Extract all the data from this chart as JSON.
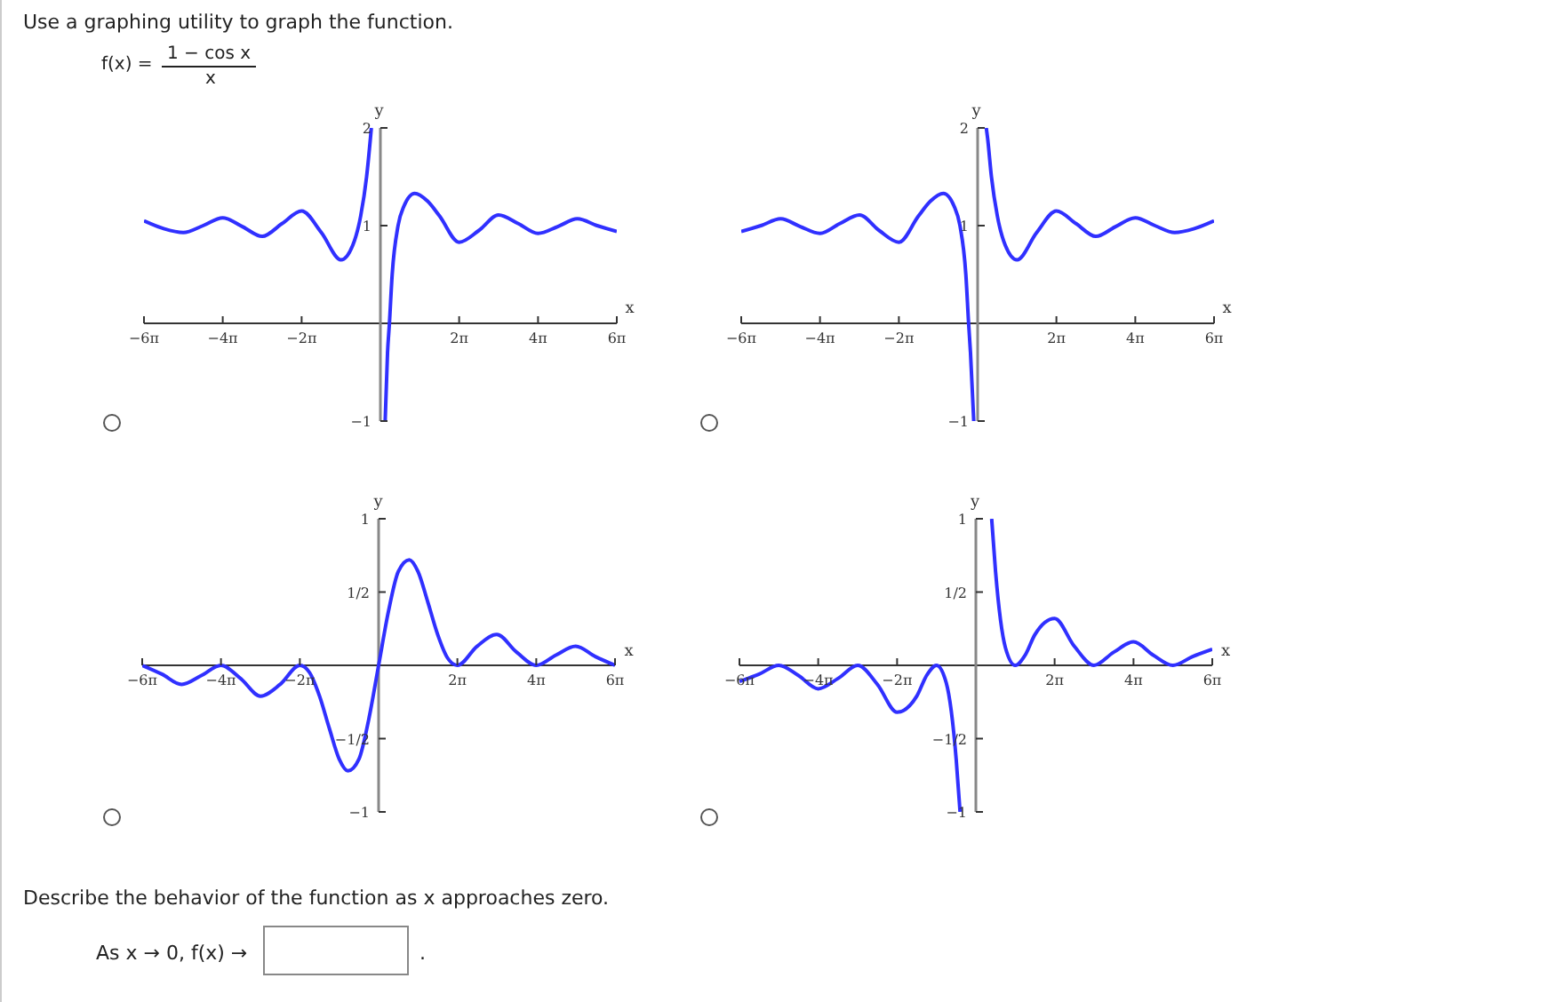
{
  "chart_data": [
    {
      "type": "line",
      "title": "Use a graphing utility to graph the function.",
      "annotations": [
        "f(x) =",
        "1 − cos x",
        "x"
      ],
      "xlabel": "x",
      "ylabel": "y",
      "xlim": [
        -18.85,
        18.85
      ],
      "ylim": [
        -1,
        2
      ],
      "xticks": [
        {
          "value": -18.85,
          "label": "−6π"
        },
        {
          "value": -12.57,
          "label": "−4π"
        },
        {
          "value": -6.28,
          "label": "−2π"
        },
        {
          "value": 6.28,
          "label": "2π"
        },
        {
          "value": 12.57,
          "label": "4π"
        },
        {
          "value": 18.85,
          "label": "6π"
        }
      ],
      "yticks": [
        {
          "value": -1,
          "label": "−1"
        },
        {
          "value": 1,
          "label": "1"
        },
        {
          "value": 2,
          "label": "2"
        }
      ],
      "series": [
        {
          "color": "#3030ff",
          "x": [
            -18.85,
            -17.28,
            -15.71,
            -14.14,
            -12.57,
            -11.0,
            -9.42,
            -7.85,
            -6.28,
            -4.71,
            -3.14,
            -2.2,
            -1.57,
            -1.1,
            -0.79,
            -0.72,
            0,
            0.38,
            0.57,
            0.72,
            0.94,
            1.41,
            1.88,
            2.73,
            3.77,
            4.71,
            6.28,
            7.85,
            9.42,
            11.0,
            12.57,
            14.14,
            15.71,
            17.28,
            18.85
          ],
          "values": [
            1.05,
            0.97,
            0.93,
            1.0,
            1.08,
            0.99,
            0.89,
            1.02,
            1.15,
            0.93,
            0.65,
            0.8,
            1.1,
            1.5,
            1.9,
            2.0,
            null,
            -1,
            -0.3,
            0,
            0.5,
            1.0,
            1.2,
            1.33,
            1.25,
            1.1,
            0.83,
            0.95,
            1.11,
            1.02,
            0.92,
            0.99,
            1.07,
            1.0,
            0.94
          ]
        }
      ]
    },
    {
      "type": "line",
      "xlabel": "x",
      "ylabel": "y",
      "xlim": [
        -18.85,
        18.85
      ],
      "ylim": [
        -1,
        2
      ],
      "xticks": [
        {
          "value": -18.85,
          "label": "−6π"
        },
        {
          "value": -12.57,
          "label": "−4π"
        },
        {
          "value": -6.28,
          "label": "−2π"
        },
        {
          "value": 6.28,
          "label": "2π"
        },
        {
          "value": 12.57,
          "label": "4π"
        },
        {
          "value": 18.85,
          "label": "6π"
        }
      ],
      "yticks": [
        {
          "value": -1,
          "label": "−1"
        },
        {
          "value": 1,
          "label": "1"
        },
        {
          "value": 2,
          "label": "2"
        }
      ],
      "series": [
        {
          "color": "#3030ff",
          "x": [
            -18.85,
            -17.28,
            -15.71,
            -14.14,
            -12.57,
            -11.0,
            -9.42,
            -7.85,
            -6.28,
            -4.71,
            -3.77,
            -2.73,
            -1.88,
            -1.41,
            -0.94,
            -0.72,
            -0.57,
            -0.31,
            0,
            0.69,
            0.79,
            1.1,
            1.57,
            2.2,
            3.14,
            4.71,
            6.28,
            7.85,
            9.42,
            11.0,
            12.57,
            14.14,
            15.71,
            17.28,
            18.85
          ],
          "values": [
            0.94,
            1.0,
            1.07,
            0.99,
            0.92,
            1.02,
            1.11,
            0.95,
            0.83,
            1.1,
            1.25,
            1.33,
            1.2,
            1.0,
            0.5,
            0,
            -0.3,
            -1,
            null,
            2.0,
            1.9,
            1.5,
            1.1,
            0.8,
            0.65,
            0.93,
            1.15,
            1.02,
            0.89,
            0.99,
            1.08,
            1.0,
            0.93,
            0.97,
            1.05
          ]
        }
      ]
    },
    {
      "type": "line",
      "annotations": [
        "Describe the behavior of the function as x approaches zero.",
        "As x → 0, f(x) →",
        "."
      ],
      "xlabel": "x",
      "ylabel": "y",
      "xlim": [
        -18.85,
        18.85
      ],
      "ylim": [
        -1,
        1
      ],
      "xticks": [
        {
          "value": -18.85,
          "label": "−6π"
        },
        {
          "value": -12.57,
          "label": "−4π"
        },
        {
          "value": -6.28,
          "label": "−2π"
        },
        {
          "value": 6.28,
          "label": "2π"
        },
        {
          "value": 12.57,
          "label": "4π"
        },
        {
          "value": 18.85,
          "label": "6π"
        }
      ],
      "yticks": [
        {
          "value": -1,
          "label": "−1"
        },
        {
          "value": -0.5,
          "label": "−1/2"
        },
        {
          "value": 0.5,
          "label": "1/2"
        },
        {
          "value": 1,
          "label": "1"
        }
      ],
      "series": [
        {
          "color": "#3030ff",
          "x": [
            -18.85,
            -17.28,
            -15.71,
            -14.14,
            -12.57,
            -11.0,
            -9.42,
            -7.85,
            -6.28,
            -5.5,
            -4.71,
            -3.93,
            -3.14,
            -2.45,
            -1.57,
            -0.79,
            0,
            0.79,
            1.57,
            2.45,
            3.14,
            3.93,
            4.71,
            5.5,
            6.28,
            7.85,
            9.42,
            11.0,
            12.57,
            14.14,
            15.71,
            17.28,
            18.85
          ],
          "values": [
            0,
            -0.06,
            -0.13,
            -0.07,
            0,
            -0.09,
            -0.21,
            -0.13,
            0,
            -0.05,
            -0.21,
            -0.43,
            -0.64,
            -0.72,
            -0.64,
            -0.37,
            0,
            0.37,
            0.64,
            0.72,
            0.64,
            0.43,
            0.21,
            0.05,
            0,
            0.13,
            0.21,
            0.09,
            0,
            0.07,
            0.13,
            0.06,
            0
          ]
        }
      ]
    },
    {
      "type": "line",
      "xlabel": "x",
      "ylabel": "y",
      "xlim": [
        -18.85,
        18.85
      ],
      "ylim": [
        -1,
        1
      ],
      "xticks": [
        {
          "value": -18.85,
          "label": "−6π"
        },
        {
          "value": -12.57,
          "label": "−4π"
        },
        {
          "value": -6.28,
          "label": "−2π"
        },
        {
          "value": 6.28,
          "label": "2π"
        },
        {
          "value": 12.57,
          "label": "4π"
        },
        {
          "value": 18.85,
          "label": "6π"
        }
      ],
      "yticks": [
        {
          "value": -1,
          "label": "−1"
        },
        {
          "value": -0.5,
          "label": "−1/2"
        },
        {
          "value": 0.5,
          "label": "1/2"
        },
        {
          "value": 1,
          "label": "1"
        }
      ],
      "series": [
        {
          "color": "#3030ff",
          "x": [
            -18.85,
            -17.28,
            -15.71,
            -14.14,
            -12.57,
            -11.0,
            -9.42,
            -7.85,
            -6.28,
            -4.71,
            -3.93,
            -3.14,
            -2.36,
            -1.57,
            -1.26,
            0,
            1.26,
            1.57,
            2.36,
            3.14,
            3.93,
            4.71,
            6.28,
            7.85,
            9.42,
            11.0,
            12.57,
            14.14,
            15.71,
            17.28,
            18.85
          ],
          "values": [
            -0.11,
            -0.06,
            0,
            -0.07,
            -0.16,
            -0.09,
            0,
            -0.13,
            -0.32,
            -0.21,
            -0.07,
            0,
            -0.12,
            -0.64,
            -1.0,
            null,
            1.0,
            0.64,
            0.12,
            0,
            0.07,
            0.21,
            0.32,
            0.13,
            0,
            0.09,
            0.16,
            0.07,
            0,
            0.06,
            0.11
          ]
        }
      ]
    }
  ]
}
